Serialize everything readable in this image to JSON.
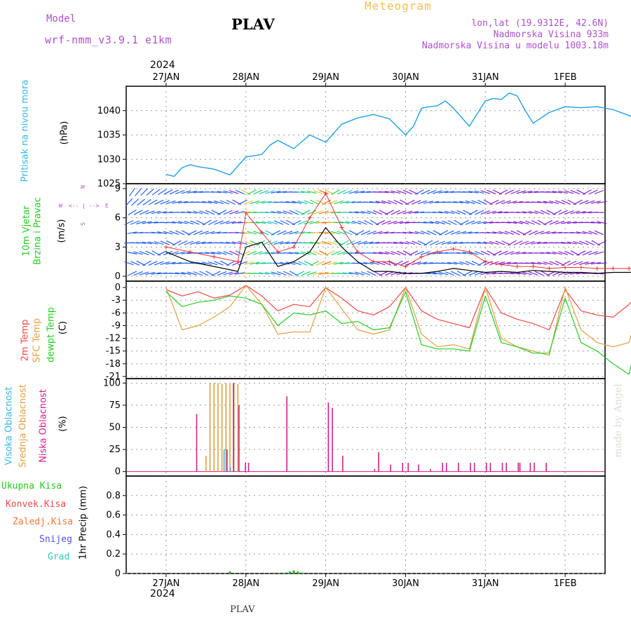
{
  "header": {
    "model_label": "Model",
    "model_name": "wrf-nmm_v3.9.1  e1km",
    "station": "PLAV",
    "product": "Meteogram",
    "lonlat": "lon,lat (19.9312E, 42.6N)",
    "elevation": "Nadmorska Visina 933m",
    "model_elevation": "Nadmorska Visina u modelu 1003.18m",
    "year_top": "2024",
    "year_bottom": "2024",
    "footer_station": "PLAV",
    "watermark": "made by Angel"
  },
  "colors": {
    "pressure": "#1ea0e6",
    "temp2m": "#f04848",
    "sfc_temp": "#e0a040",
    "dewpt": "#22cc22",
    "cloud_high": "#30b8e8",
    "cloud_mid": "#e0a040",
    "cloud_low": "#d02090",
    "wind_speed": "#000000",
    "wind_gust": "#f03030",
    "model_text": "#b050d0",
    "meteogram_text": "#f0c050",
    "precip_total": "#22aa22"
  },
  "chart_data": [
    {
      "type": "line",
      "panel": "pressure",
      "labels": [
        "Pritisak na nivou mora",
        "(hPa)"
      ],
      "x_ticks": [
        "27JAN",
        "28JAN",
        "29JAN",
        "30JAN",
        "31JAN",
        "1FEB"
      ],
      "y_ticks": [
        1025,
        1030,
        1035,
        1040
      ],
      "ylim": [
        1025,
        1045
      ],
      "grid": true,
      "series": [
        {
          "name": "Pritisak na nivou mora",
          "x": [
            0,
            0.1,
            0.2,
            0.3,
            0.4,
            0.6,
            0.8,
            1.0,
            1.2,
            1.3,
            1.4,
            1.6,
            1.8,
            2.0,
            2.2,
            2.4,
            2.6,
            2.8,
            3.0,
            3.1,
            3.2,
            3.3,
            3.4,
            3.5,
            3.6,
            3.8,
            4.0,
            4.1,
            4.2,
            4.3,
            4.4,
            4.5,
            4.6,
            4.8,
            5.0,
            5.2,
            5.4,
            5.6,
            5.8,
            6.0
          ],
          "values": [
            1026.9,
            1026.5,
            1028.3,
            1028.9,
            1028.5,
            1028.0,
            1026.8,
            1030.5,
            1031.0,
            1032.9,
            1033.9,
            1032.2,
            1035.0,
            1033.5,
            1037.2,
            1038.5,
            1039.2,
            1038.3,
            1035.0,
            1036.8,
            1040.5,
            1040.8,
            1041.0,
            1042.0,
            1040.5,
            1036.8,
            1042.0,
            1042.5,
            1042.3,
            1043.6,
            1043.0,
            1040.0,
            1037.4,
            1039.6,
            1040.8,
            1040.6,
            1040.8,
            1040.2,
            1039.0,
            1037.3
          ]
        }
      ]
    },
    {
      "type": "line",
      "panel": "wind",
      "labels": [
        "10m Vjetar",
        "Brzina i Pravac",
        "(m/s)"
      ],
      "compass": [
        "N",
        "S",
        "W",
        "E"
      ],
      "y_ticks": [
        0,
        3,
        6,
        9
      ],
      "ylim": [
        -0.5,
        9.5
      ],
      "grid": true,
      "series": [
        {
          "name": "Brzina",
          "x": [
            0,
            0.3,
            0.6,
            0.9,
            1.0,
            1.2,
            1.4,
            1.6,
            1.8,
            2.0,
            2.2,
            2.4,
            2.6,
            2.8,
            3.0,
            3.2,
            3.4,
            3.6,
            3.8,
            4.0,
            4.2,
            4.4,
            4.6,
            4.8,
            5.0,
            5.2,
            5.4,
            5.6,
            5.8,
            6.0
          ],
          "values": [
            2.5,
            1.5,
            1.0,
            0.5,
            3.0,
            3.5,
            1.0,
            1.5,
            2.5,
            5.0,
            3.0,
            1.5,
            0.5,
            0.5,
            0.3,
            0.3,
            0.5,
            0.8,
            0.6,
            0.4,
            0.5,
            0.4,
            0.6,
            0.5,
            0.4,
            0.4,
            0.3,
            0.4,
            0.4,
            0.5
          ]
        },
        {
          "name": "Udari",
          "x": [
            0,
            0.3,
            0.6,
            0.9,
            1.0,
            1.2,
            1.4,
            1.6,
            1.8,
            2.0,
            2.2,
            2.4,
            2.6,
            2.8,
            3.0,
            3.2,
            3.4,
            3.6,
            3.8,
            4.0,
            4.2,
            4.4,
            4.6,
            4.8,
            5.0,
            5.2,
            5.4,
            5.6,
            5.8,
            6.0
          ],
          "values": [
            3.0,
            2.5,
            2.0,
            1.5,
            6.5,
            4.5,
            2.5,
            3.0,
            6.0,
            8.5,
            5.0,
            2.5,
            1.5,
            1.5,
            1.0,
            2.0,
            2.5,
            2.8,
            2.5,
            1.5,
            1.2,
            1.0,
            1.0,
            0.8,
            0.9,
            0.9,
            0.8,
            0.8,
            0.8,
            0.8
          ]
        }
      ]
    },
    {
      "type": "line",
      "panel": "temperature",
      "labels": [
        "2m Temp",
        "SFC Temp",
        "dewpt Temp",
        "(C)"
      ],
      "y_ticks": [
        0,
        -3,
        -6,
        -9,
        -12,
        -15,
        -18,
        -21
      ],
      "ylim": [
        -21.5,
        1.5
      ],
      "grid": true,
      "series": [
        {
          "name": "2m Temp",
          "x": [
            0,
            0.2,
            0.4,
            0.6,
            0.8,
            1.0,
            1.2,
            1.4,
            1.6,
            1.8,
            2.0,
            2.2,
            2.4,
            2.6,
            2.8,
            3.0,
            3.2,
            3.4,
            3.6,
            3.8,
            4.0,
            4.2,
            4.4,
            4.6,
            4.8,
            5.0,
            5.2,
            5.4,
            5.6,
            5.8,
            6.0
          ],
          "values": [
            -0.5,
            -2.0,
            -1.0,
            -2.5,
            -1.8,
            0.5,
            -2.0,
            -5.5,
            -4.0,
            -4.5,
            0.0,
            -2.5,
            -5.5,
            -6.5,
            -4.5,
            0.0,
            -5.5,
            -7.5,
            -8.5,
            -9.5,
            0.0,
            -6.0,
            -7.5,
            -8.5,
            -10.0,
            -0.5,
            -5.5,
            -6.5,
            -7.0,
            -4.0,
            0.0
          ]
        },
        {
          "name": "SFC Temp",
          "x": [
            0,
            0.2,
            0.4,
            0.6,
            0.8,
            1.0,
            1.2,
            1.4,
            1.6,
            1.8,
            2.0,
            2.2,
            2.4,
            2.6,
            2.8,
            3.0,
            3.2,
            3.4,
            3.6,
            3.8,
            4.0,
            4.2,
            4.4,
            4.6,
            4.8,
            5.0,
            5.2,
            5.4,
            5.6,
            5.8,
            6.0
          ],
          "values": [
            0.0,
            -10.0,
            -9.0,
            -7.0,
            -4.5,
            0.5,
            -4.0,
            -11.0,
            -10.5,
            -10.5,
            0.0,
            -5.0,
            -10.0,
            -11.0,
            -10.0,
            0.0,
            -11.0,
            -14.0,
            -13.5,
            -14.5,
            0.0,
            -12.0,
            -14.0,
            -15.0,
            -16.0,
            0.0,
            -10.0,
            -13.0,
            -14.0,
            -13.0,
            0.5
          ]
        },
        {
          "name": "dewpt Temp",
          "x": [
            0,
            0.2,
            0.4,
            0.6,
            0.8,
            1.0,
            1.2,
            1.4,
            1.6,
            1.8,
            2.0,
            2.2,
            2.4,
            2.6,
            2.8,
            3.0,
            3.2,
            3.4,
            3.6,
            3.8,
            4.0,
            4.2,
            4.4,
            4.6,
            4.8,
            5.0,
            5.2,
            5.4,
            5.6,
            5.8,
            6.0
          ],
          "values": [
            -1.0,
            -4.5,
            -3.5,
            -3.0,
            -2.0,
            -2.5,
            -4.0,
            -9.0,
            -6.0,
            -6.5,
            -5.5,
            -8.5,
            -8.0,
            -10.0,
            -9.5,
            -1.0,
            -13.5,
            -14.5,
            -14.5,
            -15.0,
            -2.0,
            -13.0,
            -14.0,
            -15.5,
            -15.5,
            -2.5,
            -13.0,
            -15.0,
            -18.0,
            -20.5,
            -5.5
          ]
        }
      ]
    },
    {
      "type": "bar",
      "panel": "cloud",
      "labels": [
        "Visoka Oblacnost",
        "Srednja Oblacnost",
        "Niska Oblacnost",
        "(%)"
      ],
      "y_ticks": [
        0,
        25,
        50,
        75,
        100
      ],
      "ylim": [
        -5,
        105
      ],
      "grid": true,
      "series": [
        {
          "name": "Srednja Oblacnost",
          "x": [
            0.5,
            0.55,
            0.6,
            0.65,
            0.7,
            0.75,
            0.8,
            0.85,
            0.9
          ],
          "values": [
            18,
            100,
            100,
            100,
            99,
            100,
            99,
            100,
            99
          ]
        },
        {
          "name": "Niska Oblacnost",
          "x": [
            0.37,
            0.75,
            0.83,
            0.9,
            0.98,
            1.02,
            1.5,
            2.02,
            2.07,
            2.2,
            2.6,
            2.65,
            2.8,
            2.95,
            3.02,
            3.15,
            3.3,
            3.45,
            3.5,
            3.65,
            3.8,
            3.85,
            4.0,
            4.05,
            4.2,
            4.25,
            4.4,
            4.42,
            4.55,
            4.6,
            4.75
          ],
          "values": [
            65,
            25,
            100,
            75,
            10,
            10,
            85,
            78,
            72,
            18,
            3,
            22,
            8,
            10,
            10,
            8,
            3,
            10,
            10,
            10,
            10,
            10,
            10,
            10,
            10,
            10,
            10,
            10,
            10,
            10,
            10
          ]
        },
        {
          "name": "Visoka Oblacnost",
          "x": [
            0.7,
            0.78
          ],
          "values": [
            25,
            5
          ]
        }
      ]
    },
    {
      "type": "bar",
      "panel": "precip",
      "labels": [
        "Ukupna Kisa",
        "Konvek.Kisa",
        "Zaledj.Kisa",
        "Snijeg",
        "Grad",
        "1hr Precip (mm)"
      ],
      "y_ticks": [
        0,
        0.2,
        0.4,
        0.6,
        0.8
      ],
      "ylim": [
        0,
        1.0
      ],
      "grid": true,
      "series": [
        {
          "name": "Ukupna Kisa",
          "x": [
            0.8,
            1.5,
            1.55,
            1.6,
            1.65,
            1.7
          ],
          "values": [
            0.02,
            0.01,
            0.02,
            0.03,
            0.02,
            0.01
          ]
        }
      ]
    }
  ]
}
